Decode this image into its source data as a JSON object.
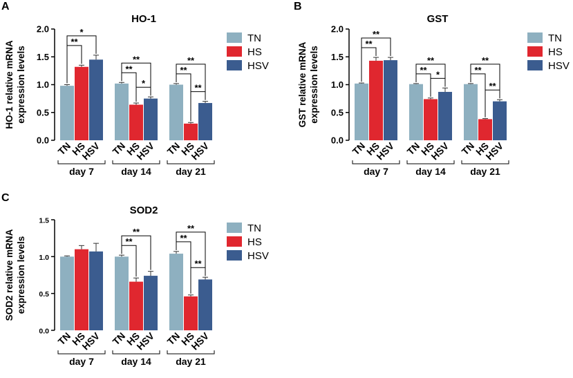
{
  "colors": {
    "TN": "#8eb0c0",
    "HS": "#e0272f",
    "HSV": "#3b5c8f"
  },
  "chart_data": [
    {
      "panel": "A",
      "type": "bar",
      "title": "HO-1",
      "ylabel": [
        "HO-1 relative mRNA",
        "expression levels"
      ],
      "ylim": [
        0,
        2.0
      ],
      "yticks": [
        "0.0",
        "0.5",
        "1.0",
        "1.5",
        "2.0"
      ],
      "tick_values": [
        0,
        0.5,
        1.0,
        1.5,
        2.0
      ],
      "groups": [
        "day 7",
        "day 14",
        "day 21"
      ],
      "bar_labels": [
        "TN",
        "HS",
        "HSV"
      ],
      "legend": [
        "TN",
        "HS",
        "HSV"
      ],
      "series": [
        {
          "name": "TN",
          "values": [
            0.98,
            1.02,
            1.0
          ],
          "errors": [
            0.02,
            0.02,
            0.02
          ]
        },
        {
          "name": "HS",
          "values": [
            1.32,
            0.64,
            0.3
          ],
          "errors": [
            0.03,
            0.03,
            0.02
          ]
        },
        {
          "name": "HSV",
          "values": [
            1.45,
            0.75,
            0.67
          ],
          "errors": [
            0.08,
            0.03,
            0.03
          ]
        }
      ],
      "significance": [
        {
          "group": 0,
          "from": 0,
          "to": 1,
          "label": "**"
        },
        {
          "group": 0,
          "from": 0,
          "to": 2,
          "label": "*"
        },
        {
          "group": 1,
          "from": 0,
          "to": 1,
          "label": "**"
        },
        {
          "group": 1,
          "from": 0,
          "to": 2,
          "label": "**"
        },
        {
          "group": 1,
          "from": 1,
          "to": 2,
          "label": "*"
        },
        {
          "group": 2,
          "from": 0,
          "to": 1,
          "label": "**"
        },
        {
          "group": 2,
          "from": 0,
          "to": 2,
          "label": "**"
        },
        {
          "group": 2,
          "from": 1,
          "to": 2,
          "label": "**"
        }
      ]
    },
    {
      "panel": "B",
      "type": "bar",
      "title": "GST",
      "ylabel": [
        "GST relative mRNA",
        "expression levels"
      ],
      "ylim": [
        0,
        2.0
      ],
      "yticks": [
        "0.0",
        "0.5",
        "1.0",
        "1.5",
        "2.0"
      ],
      "tick_values": [
        0,
        0.5,
        1.0,
        1.5,
        2.0
      ],
      "groups": [
        "day 7",
        "day 14",
        "day 21"
      ],
      "bar_labels": [
        "TN",
        "HS",
        "HSV"
      ],
      "legend": [
        "TN",
        "HS",
        "HSV"
      ],
      "series": [
        {
          "name": "TN",
          "values": [
            1.02,
            1.01,
            1.01
          ],
          "errors": [
            0.01,
            0.01,
            0.01
          ]
        },
        {
          "name": "HS",
          "values": [
            1.43,
            0.74,
            0.38
          ],
          "errors": [
            0.06,
            0.02,
            0.01
          ]
        },
        {
          "name": "HSV",
          "values": [
            1.44,
            0.87,
            0.7
          ],
          "errors": [
            0.05,
            0.07,
            0.03
          ]
        }
      ],
      "significance": [
        {
          "group": 0,
          "from": 0,
          "to": 1,
          "label": "**"
        },
        {
          "group": 0,
          "from": 0,
          "to": 2,
          "label": "**"
        },
        {
          "group": 1,
          "from": 0,
          "to": 1,
          "label": "**"
        },
        {
          "group": 1,
          "from": 0,
          "to": 2,
          "label": "**"
        },
        {
          "group": 1,
          "from": 1,
          "to": 2,
          "label": "*"
        },
        {
          "group": 2,
          "from": 0,
          "to": 1,
          "label": "**"
        },
        {
          "group": 2,
          "from": 0,
          "to": 2,
          "label": "**"
        },
        {
          "group": 2,
          "from": 1,
          "to": 2,
          "label": "**"
        }
      ]
    },
    {
      "panel": "C",
      "type": "bar",
      "title": "SOD2",
      "ylabel": [
        "SOD2 relative mRNA",
        "expression levels"
      ],
      "ylim": [
        0,
        1.5
      ],
      "yticks": [
        "0.0",
        "0.5",
        "1.0",
        "1.5"
      ],
      "tick_values": [
        0,
        0.5,
        1.0,
        1.5
      ],
      "groups": [
        "day 7",
        "day 14",
        "day 21"
      ],
      "bar_labels": [
        "TN",
        "HS",
        "HSV"
      ],
      "legend": [
        "TN",
        "HS",
        "HSV"
      ],
      "series": [
        {
          "name": "TN",
          "values": [
            1.0,
            1.0,
            1.04
          ],
          "errors": [
            0.01,
            0.02,
            0.03
          ]
        },
        {
          "name": "HS",
          "values": [
            1.1,
            0.66,
            0.46
          ],
          "errors": [
            0.05,
            0.05,
            0.02
          ]
        },
        {
          "name": "HSV",
          "values": [
            1.07,
            0.74,
            0.69
          ],
          "errors": [
            0.11,
            0.06,
            0.03
          ]
        }
      ],
      "significance": [
        {
          "group": 1,
          "from": 0,
          "to": 1,
          "label": "**"
        },
        {
          "group": 1,
          "from": 0,
          "to": 2,
          "label": "**"
        },
        {
          "group": 2,
          "from": 0,
          "to": 1,
          "label": "**"
        },
        {
          "group": 2,
          "from": 0,
          "to": 2,
          "label": "**"
        },
        {
          "group": 2,
          "from": 1,
          "to": 2,
          "label": "**"
        }
      ]
    }
  ]
}
